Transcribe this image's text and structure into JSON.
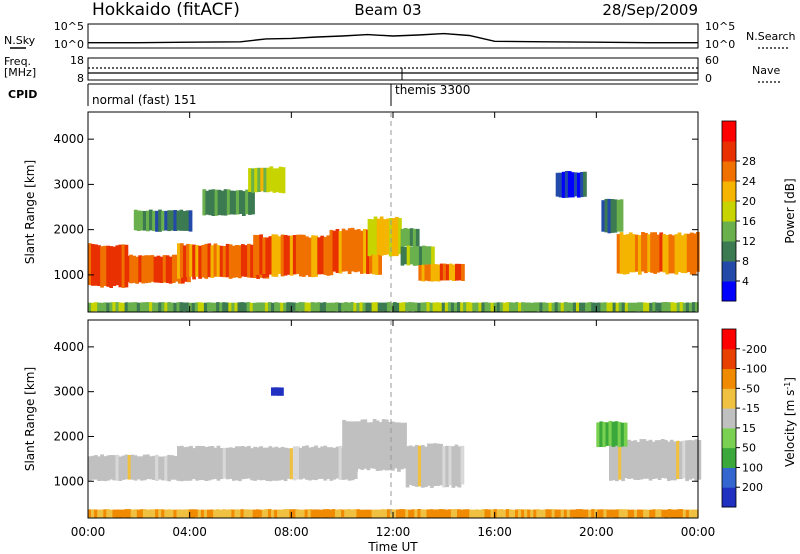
{
  "header": {
    "station": "Hokkaido (fitACF)",
    "beam": "Beam 03",
    "date": "28/Sep/2009"
  },
  "chart_data": [
    {
      "type": "line",
      "name": "noise-panel",
      "left_label": "N.Sky",
      "right_label": "N.Search",
      "yticks_left": [
        "10^5",
        "10^0"
      ],
      "yticks_right": [
        "10^5",
        "10^0"
      ],
      "series": [
        {
          "x": [
            0,
            2,
            4,
            6,
            7,
            8,
            9,
            10,
            11,
            12,
            13,
            14,
            15,
            16,
            18,
            20,
            22,
            24
          ],
          "y": [
            0.22,
            0.22,
            0.24,
            0.26,
            0.38,
            0.4,
            0.46,
            0.5,
            0.56,
            0.5,
            0.54,
            0.6,
            0.52,
            0.28,
            0.26,
            0.24,
            0.22,
            0.22
          ]
        }
      ]
    },
    {
      "type": "line",
      "name": "frequency-panel",
      "left_label_top": "Freq.",
      "left_label_bottom": "[MHz]",
      "right_label": "Nave",
      "yticks_left": [
        "18",
        "8"
      ],
      "yticks_right": [
        "60",
        "0"
      ],
      "series": [
        {
          "name": "",
          "x": [
            0,
            24
          ],
          "y": [
            11,
            11
          ]
        },
        {
          "name": "",
          "x": [
            0,
            24
          ],
          "y": [
            13,
            13
          ]
        }
      ]
    },
    {
      "type": "table",
      "name": "cpid-panel",
      "label": "CPID",
      "segments": [
        {
          "start": 0,
          "label": "normal (fast) 151"
        },
        {
          "start": 11.9,
          "label": "themis 3300"
        }
      ]
    },
    {
      "type": "heatmap",
      "name": "power-panel",
      "ylabel": "Slant Range [km]",
      "yticks": [
        1000,
        2000,
        3000,
        4000
      ],
      "ylim": [
        180,
        4600
      ],
      "xlim": [
        0,
        24
      ],
      "colorbar": {
        "label": "Power [dB]",
        "ticks": [
          "4",
          "8",
          "12",
          "16",
          "20",
          "24",
          "28"
        ],
        "colors": [
          "#0000ff",
          "#234aa8",
          "#3c7a52",
          "#6ab04c",
          "#c8d400",
          "#f4b400",
          "#f07000",
          "#e83000",
          "#ff0000"
        ]
      },
      "regions": [
        {
          "t0": 0.0,
          "t1": 1.5,
          "r0": 700,
          "r1": 1700,
          "level": 28
        },
        {
          "t0": 1.5,
          "t1": 4.0,
          "r0": 800,
          "r1": 1450,
          "level": 27
        },
        {
          "t0": 3.5,
          "t1": 7.0,
          "r0": 900,
          "r1": 1700,
          "level": 27
        },
        {
          "t0": 6.5,
          "t1": 9.5,
          "r0": 950,
          "r1": 1900,
          "level": 26
        },
        {
          "t0": 9.5,
          "t1": 11.5,
          "r0": 1000,
          "r1": 2050,
          "level": 25
        },
        {
          "t0": 11.0,
          "t1": 12.3,
          "r0": 1400,
          "r1": 2300,
          "level": 20
        },
        {
          "t0": 12.3,
          "t1": 13.0,
          "r0": 1600,
          "r1": 2050,
          "level": 12
        },
        {
          "t0": 12.3,
          "t1": 13.5,
          "r0": 1200,
          "r1": 1650,
          "level": 14
        },
        {
          "t0": 13.0,
          "t1": 14.7,
          "r0": 850,
          "r1": 1250,
          "level": 26
        },
        {
          "t0": 1.8,
          "t1": 4.0,
          "r0": 1950,
          "r1": 2450,
          "level": 10
        },
        {
          "t0": 4.5,
          "t1": 6.5,
          "r0": 2300,
          "r1": 2900,
          "level": 12
        },
        {
          "t0": 6.3,
          "t1": 7.7,
          "r0": 2800,
          "r1": 3400,
          "level": 18
        },
        {
          "t0": 20.2,
          "t1": 21.0,
          "r0": 1900,
          "r1": 2700,
          "level": 9
        },
        {
          "t0": 20.8,
          "t1": 24.0,
          "r0": 1000,
          "r1": 1950,
          "level": 25
        },
        {
          "t0": 18.4,
          "t1": 19.6,
          "r0": 2700,
          "r1": 3300,
          "level": 5
        },
        {
          "t0": 0.0,
          "t1": 24.0,
          "r0": 180,
          "r1": 400,
          "level": 14
        }
      ]
    },
    {
      "type": "heatmap",
      "name": "velocity-panel",
      "ylabel": "Slant Range [km]",
      "yticks": [
        1000,
        2000,
        3000,
        4000
      ],
      "ylim": [
        180,
        4600
      ],
      "xlim": [
        0,
        24
      ],
      "colorbar": {
        "label": "Velocity [m s^-1]",
        "ticks": [
          "200",
          "100",
          "50",
          "15",
          "-15",
          "-50",
          "-100",
          "-200"
        ],
        "colors": [
          "#2030c0",
          "#3466d0",
          "#3aa83a",
          "#7ad050",
          "#c0c0c0",
          "#f0c040",
          "#f08a00",
          "#e84000",
          "#ff0000"
        ]
      },
      "regions": [
        {
          "t0": 0.0,
          "t1": 4.0,
          "r0": 1000,
          "r1": 1600,
          "level": 0
        },
        {
          "t0": 3.5,
          "t1": 10.5,
          "r0": 1000,
          "r1": 1800,
          "level": 0
        },
        {
          "t0": 10.0,
          "t1": 12.5,
          "r0": 1200,
          "r1": 2400,
          "level": 0
        },
        {
          "t0": 12.5,
          "t1": 14.7,
          "r0": 850,
          "r1": 1850,
          "level": 0
        },
        {
          "t0": 20.5,
          "t1": 24.0,
          "r0": 1000,
          "r1": 1950,
          "level": 0
        },
        {
          "t0": 20.0,
          "t1": 21.2,
          "r0": 1750,
          "r1": 2350,
          "level": 40
        },
        {
          "t0": 0.0,
          "t1": 24.0,
          "r0": 180,
          "r1": 380,
          "level": -40
        },
        {
          "t0": 7.2,
          "t1": 7.6,
          "r0": 2900,
          "r1": 3100,
          "level": 200
        }
      ]
    }
  ],
  "xaxis": {
    "label": "Time UT",
    "ticks": [
      "00:00",
      "04:00",
      "08:00",
      "12:00",
      "16:00",
      "20:00",
      "00:00"
    ]
  }
}
